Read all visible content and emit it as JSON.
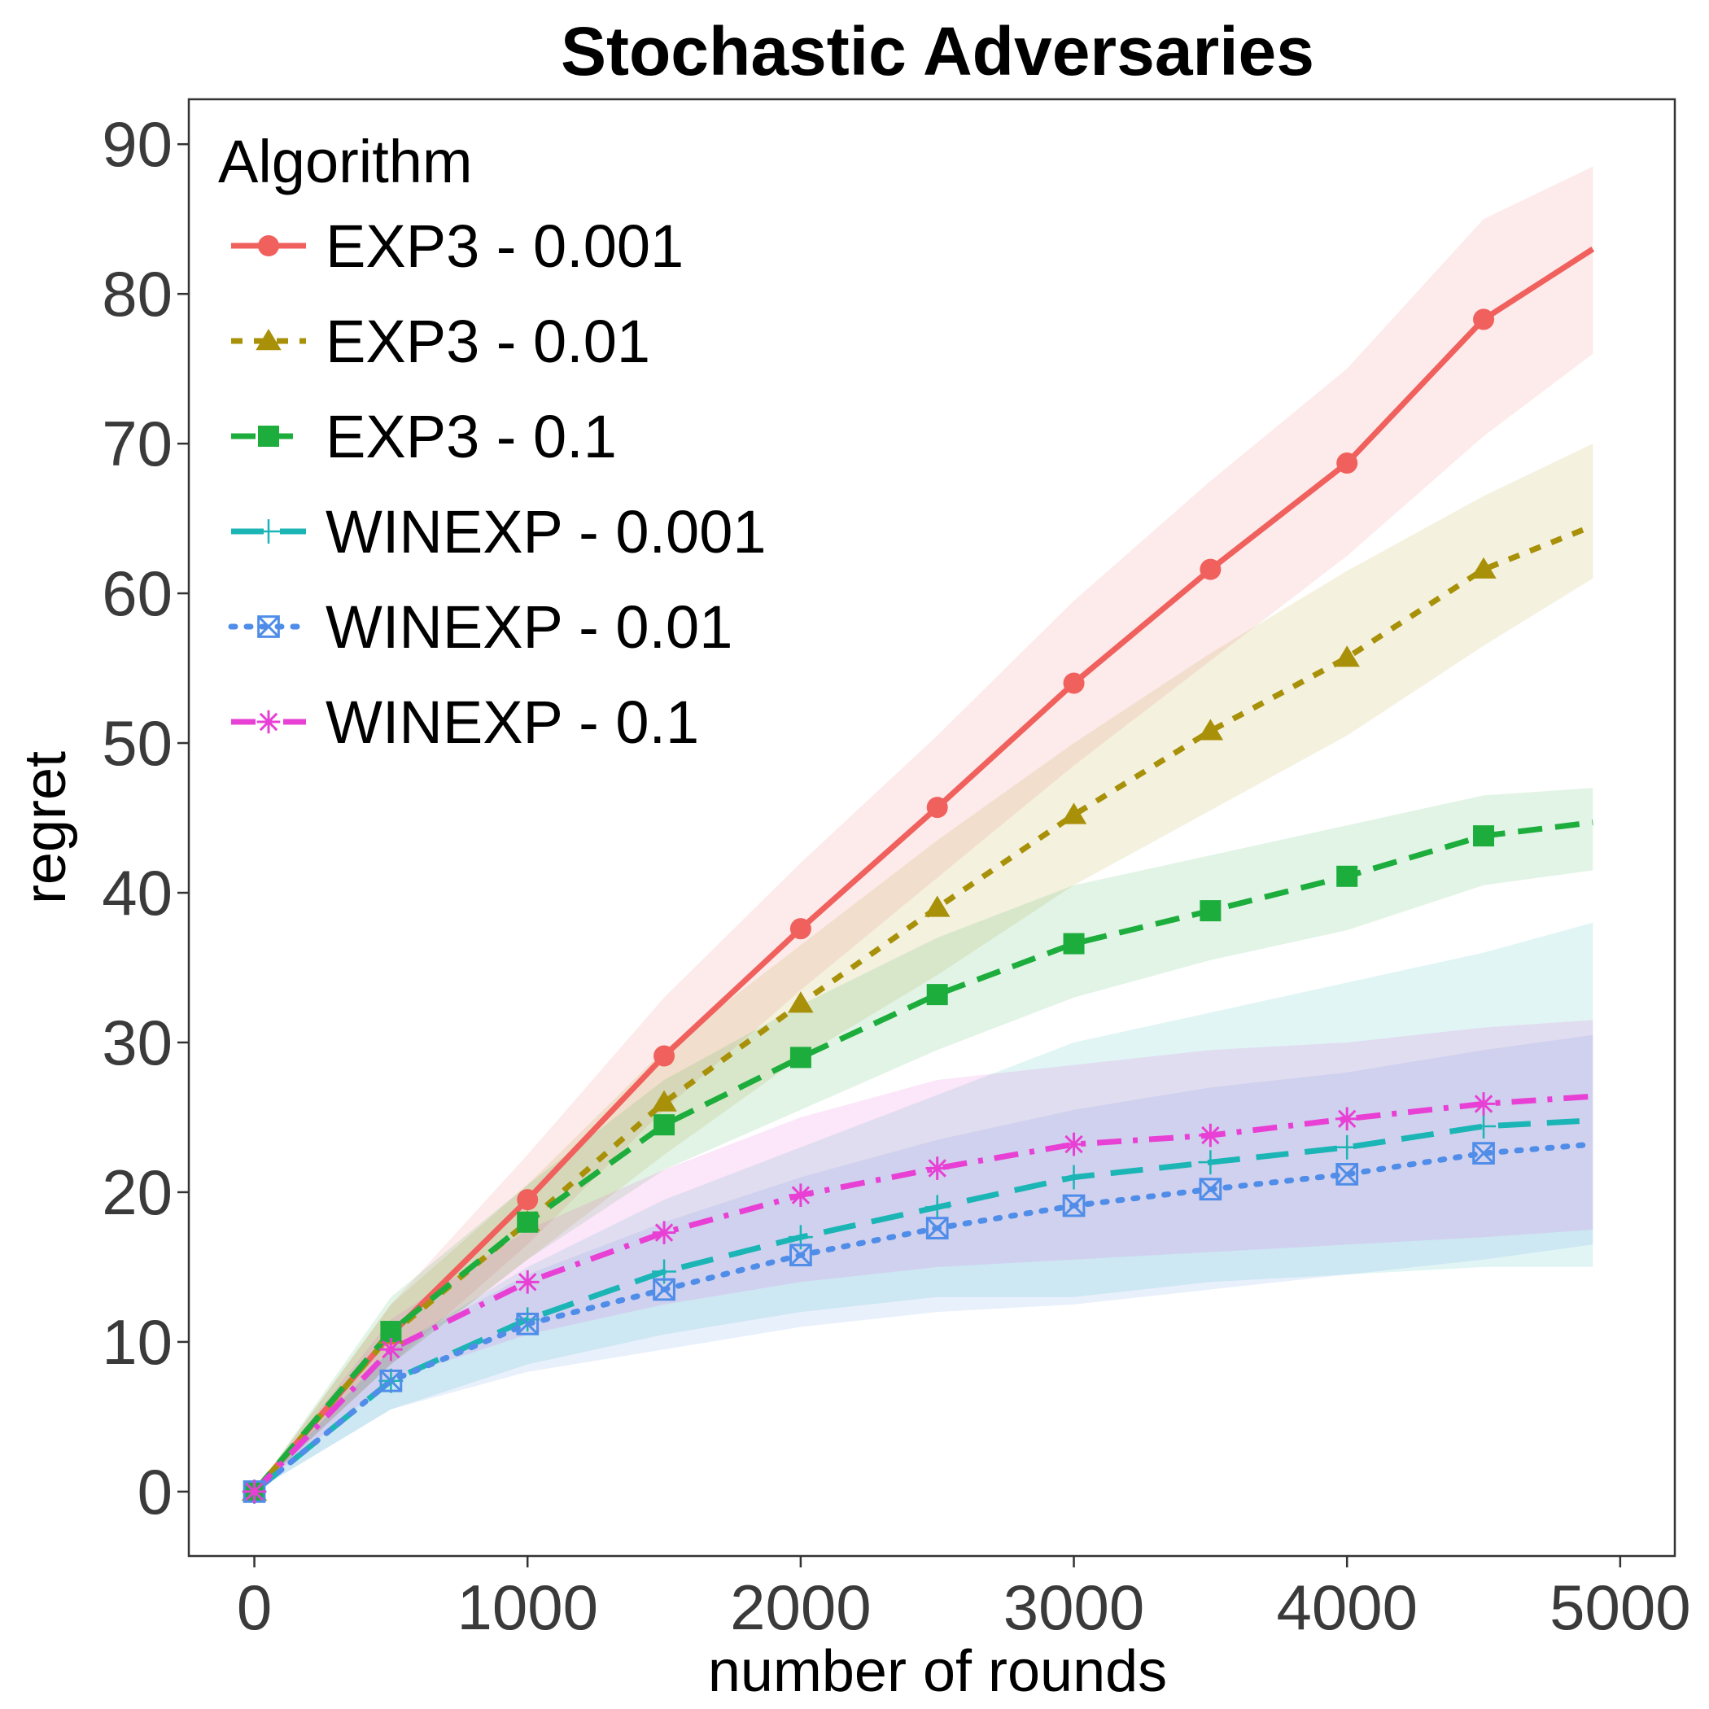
{
  "chart_data": {
    "type": "line",
    "title": "Stochastic Adversaries",
    "xlabel": "number of rounds",
    "ylabel": "regret",
    "xlim": [
      -240,
      5200
    ],
    "ylim": [
      -4.3,
      93
    ],
    "x_ticks": [
      0,
      1000,
      2000,
      3000,
      4000,
      5000
    ],
    "y_ticks": [
      0,
      10,
      20,
      30,
      40,
      50,
      60,
      70,
      80,
      90
    ],
    "grid": false,
    "legend": {
      "title": "Algorithm",
      "position": "top-left"
    },
    "x": [
      0,
      500,
      1000,
      1500,
      2000,
      2500,
      3000,
      3500,
      4000,
      4500,
      4900
    ],
    "series": [
      {
        "name": "EXP3 - 0.001",
        "color": "#F0605D",
        "dash": "solid",
        "marker": "circle",
        "values": [
          0,
          10.5,
          19.5,
          29.1,
          37.6,
          45.7,
          54,
          61.6,
          68.7,
          78.3,
          83
        ],
        "lower": [
          0,
          8.5,
          16.5,
          25.5,
          33.5,
          41,
          48.5,
          55.5,
          62.5,
          70.5,
          76
        ],
        "upper": [
          0,
          12.5,
          22.5,
          33,
          42,
          50.5,
          59.5,
          67.5,
          75,
          85,
          88.5
        ]
      },
      {
        "name": "EXP3 - 0.01",
        "color": "#A89108",
        "dash": "dashed-short",
        "marker": "triangle",
        "values": [
          0,
          10.5,
          18,
          26,
          32.6,
          39,
          45.2,
          50.8,
          55.7,
          61.6,
          64.5
        ],
        "lower": [
          0,
          8.5,
          15.5,
          22.5,
          29,
          34.5,
          40.5,
          45.5,
          50.5,
          56.5,
          61
        ],
        "upper": [
          0,
          12.5,
          20.5,
          29.5,
          36.5,
          43.5,
          50,
          56,
          61.5,
          66.5,
          70
        ]
      },
      {
        "name": "EXP3 - 0.1",
        "color": "#1DAD3D",
        "dash": "dashed",
        "marker": "square",
        "values": [
          0,
          10.7,
          18,
          24.5,
          29,
          33.2,
          36.6,
          38.8,
          41.1,
          43.8,
          44.7
        ],
        "lower": [
          0,
          8.5,
          15.5,
          21.5,
          25.5,
          29.5,
          33,
          35.5,
          37.5,
          40.5,
          41.5
        ],
        "upper": [
          0,
          13,
          20.5,
          27.5,
          32.5,
          37,
          40.5,
          42.5,
          44.5,
          46.5,
          47
        ]
      },
      {
        "name": "WINEXP - 0.001",
        "color": "#1BB5B5",
        "dash": "long-dash",
        "marker": "plus",
        "values": [
          0,
          7.4,
          11.5,
          14.7,
          17,
          19,
          21,
          22,
          23,
          24.4,
          24.8
        ],
        "lower": [
          0,
          5.5,
          8.5,
          10.5,
          12,
          13,
          13,
          14,
          14.5,
          15,
          15
        ],
        "upper": [
          0,
          9.5,
          15,
          19.5,
          23,
          26.5,
          30,
          32,
          34,
          36,
          38
        ]
      },
      {
        "name": "WINEXP - 0.01",
        "color": "#4F8DE8",
        "dash": "dotted",
        "marker": "square-x",
        "values": [
          0,
          7.4,
          11.2,
          13.5,
          15.8,
          17.6,
          19.1,
          20.2,
          21.2,
          22.6,
          23.2
        ],
        "lower": [
          0,
          5.5,
          8,
          9.5,
          11,
          12,
          12.5,
          13.5,
          14.5,
          15.5,
          16.5
        ],
        "upper": [
          0,
          9.5,
          14.5,
          18,
          21,
          23.5,
          25.5,
          27,
          28,
          29.5,
          30.5
        ]
      },
      {
        "name": "WINEXP - 0.1",
        "color": "#E840D4",
        "dash": "dash-dot",
        "marker": "asterisk",
        "values": [
          0,
          9.5,
          14,
          17.3,
          19.8,
          21.6,
          23.2,
          23.8,
          24.9,
          25.9,
          26.4
        ],
        "lower": [
          0,
          7.5,
          10.5,
          12.5,
          14,
          15,
          15.5,
          16,
          16.5,
          17,
          17.5
        ],
        "upper": [
          0,
          11.5,
          17.5,
          21.5,
          25,
          27.5,
          28.5,
          29.5,
          30,
          31,
          31.5
        ]
      }
    ]
  }
}
